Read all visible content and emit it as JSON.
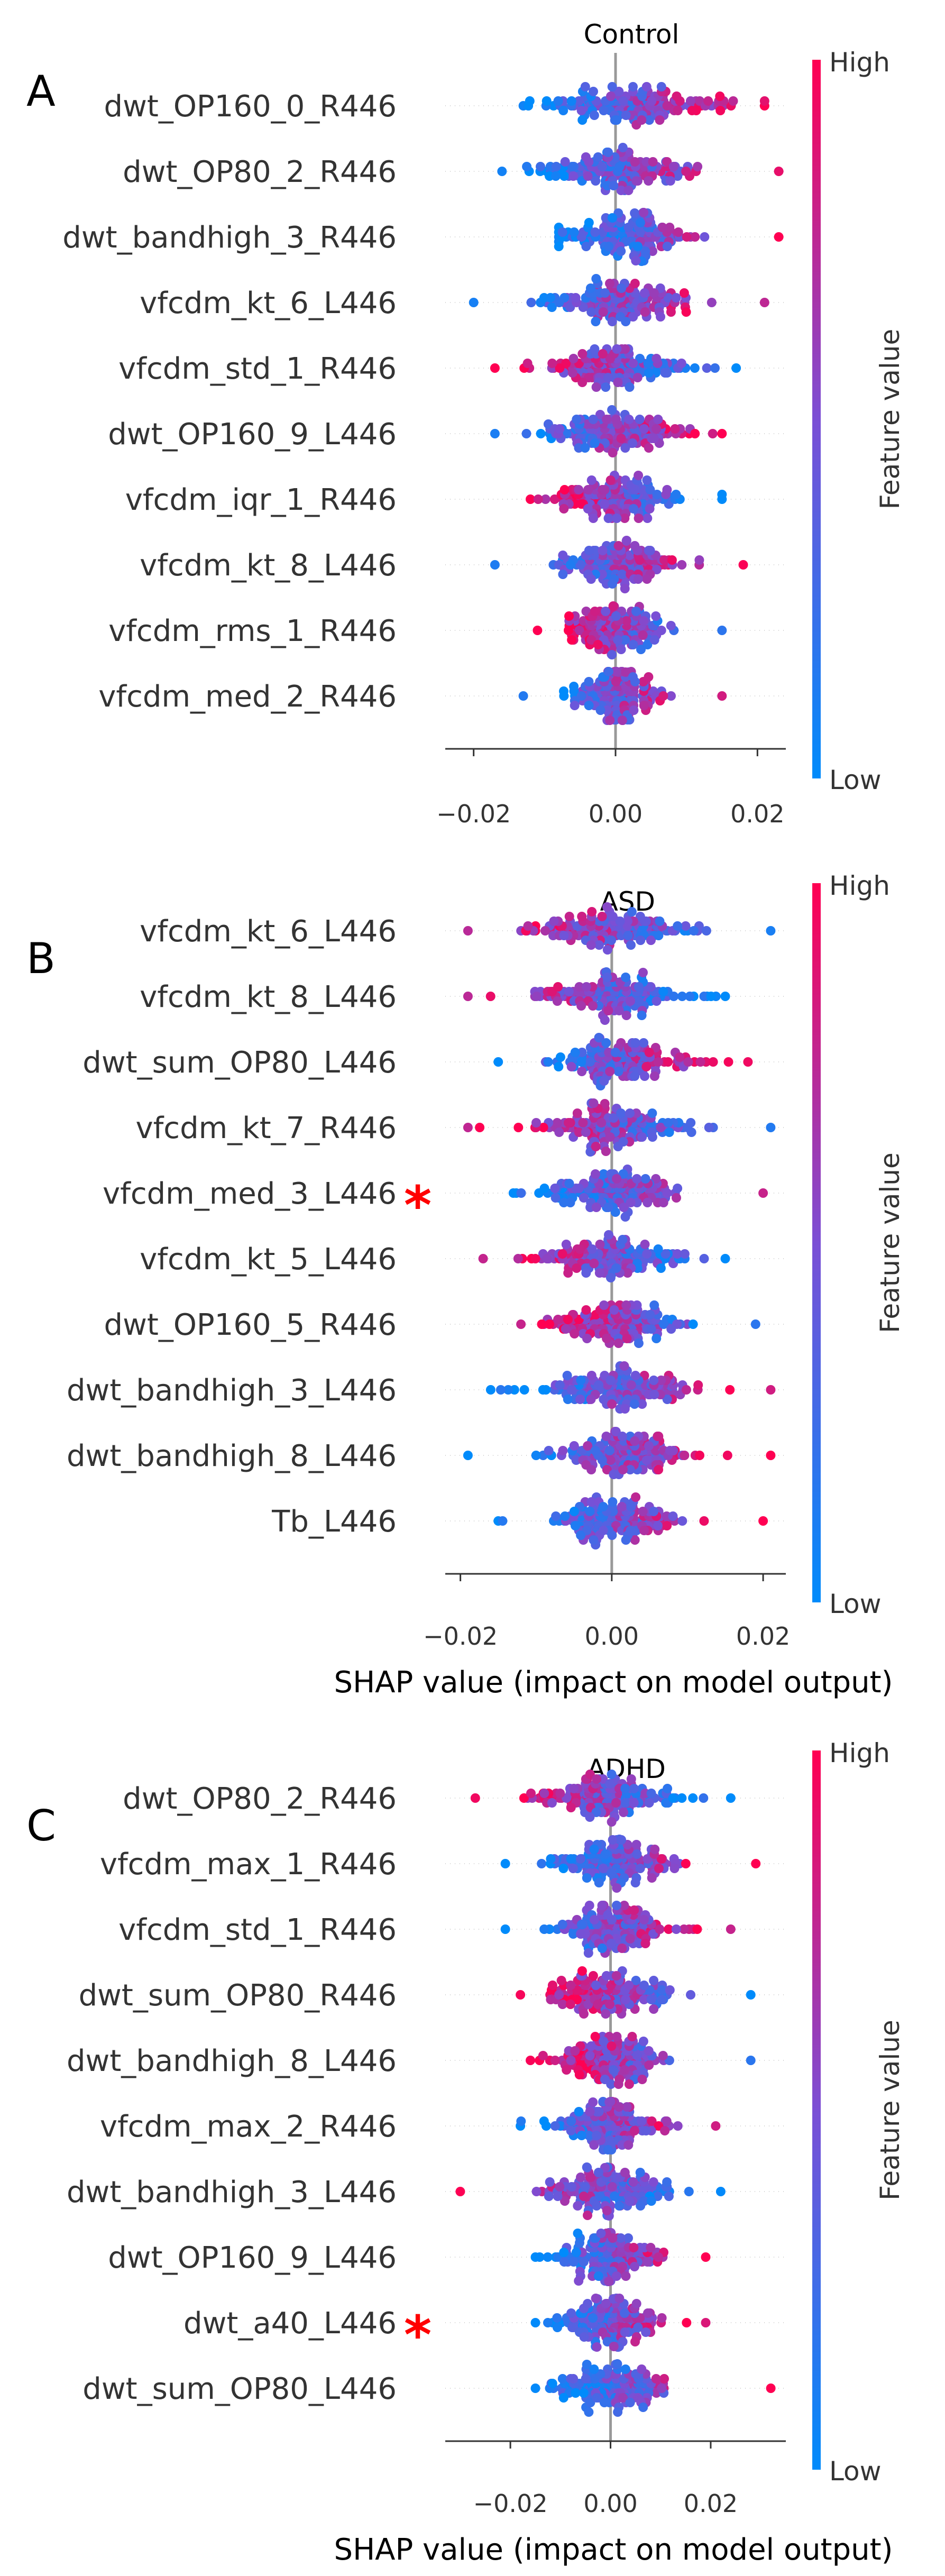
{
  "figure": {
    "colorbar": {
      "high_label": "High",
      "low_label": "Low",
      "title": "Feature value",
      "low_color": "#008bfb",
      "high_color": "#ff0052"
    },
    "marker_color": "#ff0000",
    "marker_symbol": "*"
  },
  "chart_data": [
    {
      "type": "scatter",
      "subtype": "shap-beeswarm",
      "panel_letter": "A",
      "title": "Control",
      "xlabel": "",
      "xlim": [
        -0.024,
        0.024
      ],
      "xticks": [
        -0.02,
        0.0,
        0.02
      ],
      "xtick_labels": [
        "−0.02",
        "0.00",
        "0.02"
      ],
      "features": [
        {
          "name": "dwt_OP160_0_R446",
          "min": -0.013,
          "max": 0.021,
          "spread": 0.011,
          "center": 0.002,
          "corr": 1,
          "starred": false
        },
        {
          "name": "dwt_OP80_2_R446",
          "min": -0.016,
          "max": 0.023,
          "spread": 0.009,
          "center": 0.0,
          "corr": 1,
          "starred": false
        },
        {
          "name": "dwt_bandhigh_3_R446",
          "min": -0.008,
          "max": 0.023,
          "spread": 0.008,
          "center": 0.002,
          "corr": 1,
          "starred": false
        },
        {
          "name": "vfcdm_kt_6_L446",
          "min": -0.02,
          "max": 0.021,
          "spread": 0.009,
          "center": 0.0,
          "corr": 1,
          "starred": false
        },
        {
          "name": "vfcdm_std_1_R446",
          "min": -0.017,
          "max": 0.017,
          "spread": 0.008,
          "center": 0.0,
          "corr": -1,
          "starred": false
        },
        {
          "name": "dwt_OP160_9_L446",
          "min": -0.017,
          "max": 0.015,
          "spread": 0.008,
          "center": 0.0,
          "corr": 1,
          "starred": false
        },
        {
          "name": "vfcdm_iqr_1_R446",
          "min": -0.012,
          "max": 0.015,
          "spread": 0.007,
          "center": 0.0,
          "corr": -1,
          "starred": false
        },
        {
          "name": "vfcdm_kt_8_L446",
          "min": -0.017,
          "max": 0.018,
          "spread": 0.007,
          "center": 0.0,
          "corr": 1,
          "starred": false
        },
        {
          "name": "vfcdm_rms_1_R446",
          "min": -0.011,
          "max": 0.015,
          "spread": 0.006,
          "center": 0.0,
          "corr": -1,
          "starred": false
        },
        {
          "name": "vfcdm_med_2_R446",
          "min": -0.013,
          "max": 0.015,
          "spread": 0.006,
          "center": 0.0,
          "corr": 1,
          "starred": false
        }
      ]
    },
    {
      "type": "scatter",
      "subtype": "shap-beeswarm",
      "panel_letter": "B",
      "title": "ASD",
      "xlabel": "SHAP value (impact on model output)",
      "xlim": [
        -0.022,
        0.023
      ],
      "xticks": [
        -0.02,
        0.0,
        0.02
      ],
      "xtick_labels": [
        "−0.02",
        "0.00",
        "0.02"
      ],
      "features": [
        {
          "name": "vfcdm_kt_6_L446",
          "min": -0.019,
          "max": 0.021,
          "spread": 0.009,
          "center": 0.0,
          "corr": -1,
          "starred": false
        },
        {
          "name": "vfcdm_kt_8_L446",
          "min": -0.019,
          "max": 0.015,
          "spread": 0.008,
          "center": 0.0,
          "corr": -1,
          "starred": false
        },
        {
          "name": "dwt_sum_OP80_L446",
          "min": -0.015,
          "max": 0.018,
          "spread": 0.008,
          "center": 0.001,
          "corr": 1,
          "starred": false
        },
        {
          "name": "vfcdm_kt_7_R446",
          "min": -0.019,
          "max": 0.021,
          "spread": 0.008,
          "center": 0.0,
          "corr": -1,
          "starred": false
        },
        {
          "name": "vfcdm_med_3_L446",
          "min": -0.013,
          "max": 0.02,
          "spread": 0.007,
          "center": 0.0,
          "corr": 1,
          "starred": true
        },
        {
          "name": "vfcdm_kt_5_L446",
          "min": -0.017,
          "max": 0.015,
          "spread": 0.008,
          "center": 0.0,
          "corr": -1,
          "starred": false
        },
        {
          "name": "dwt_OP160_5_R446",
          "min": -0.012,
          "max": 0.019,
          "spread": 0.007,
          "center": 0.0,
          "corr": -1,
          "starred": false
        },
        {
          "name": "dwt_bandhigh_3_L446",
          "min": -0.016,
          "max": 0.021,
          "spread": 0.008,
          "center": 0.0,
          "corr": 1,
          "starred": false
        },
        {
          "name": "dwt_bandhigh_8_L446",
          "min": -0.019,
          "max": 0.021,
          "spread": 0.008,
          "center": 0.001,
          "corr": 1,
          "starred": false
        },
        {
          "name": "Tb_L446",
          "min": -0.015,
          "max": 0.02,
          "spread": 0.007,
          "center": 0.0,
          "corr": 1,
          "starred": false
        }
      ]
    },
    {
      "type": "scatter",
      "subtype": "shap-beeswarm",
      "panel_letter": "C",
      "title": "ADHD",
      "xlabel": "SHAP value (impact on model output)",
      "xlim": [
        -0.033,
        0.035
      ],
      "xticks": [
        -0.02,
        0.0,
        0.02
      ],
      "xtick_labels": [
        "−0.02",
        "0.00",
        "0.02"
      ],
      "features": [
        {
          "name": "dwt_OP80_2_R446",
          "min": -0.027,
          "max": 0.024,
          "spread": 0.012,
          "center": 0.0,
          "corr": -1,
          "starred": false
        },
        {
          "name": "vfcdm_max_1_R446",
          "min": -0.021,
          "max": 0.029,
          "spread": 0.01,
          "center": 0.001,
          "corr": 1,
          "starred": false
        },
        {
          "name": "vfcdm_std_1_R446",
          "min": -0.021,
          "max": 0.024,
          "spread": 0.01,
          "center": 0.0,
          "corr": 1,
          "starred": false
        },
        {
          "name": "dwt_sum_OP80_R446",
          "min": -0.018,
          "max": 0.028,
          "spread": 0.01,
          "center": 0.0,
          "corr": -1,
          "starred": false
        },
        {
          "name": "dwt_bandhigh_8_L446",
          "min": -0.016,
          "max": 0.028,
          "spread": 0.01,
          "center": 0.0,
          "corr": -1,
          "starred": false
        },
        {
          "name": "vfcdm_max_2_R446",
          "min": -0.018,
          "max": 0.021,
          "spread": 0.009,
          "center": 0.0,
          "corr": 1,
          "starred": false
        },
        {
          "name": "dwt_bandhigh_3_L446",
          "min": -0.03,
          "max": 0.022,
          "spread": 0.011,
          "center": 0.0,
          "corr": -1,
          "starred": false
        },
        {
          "name": "dwt_OP160_9_L446",
          "min": -0.015,
          "max": 0.019,
          "spread": 0.008,
          "center": 0.0,
          "corr": 1,
          "starred": false
        },
        {
          "name": "dwt_a40_L446",
          "min": -0.015,
          "max": 0.019,
          "spread": 0.008,
          "center": 0.0,
          "corr": 1,
          "starred": true
        },
        {
          "name": "dwt_sum_OP80_L446",
          "min": -0.015,
          "max": 0.032,
          "spread": 0.009,
          "center": 0.0,
          "corr": 1,
          "starred": false
        }
      ]
    }
  ]
}
